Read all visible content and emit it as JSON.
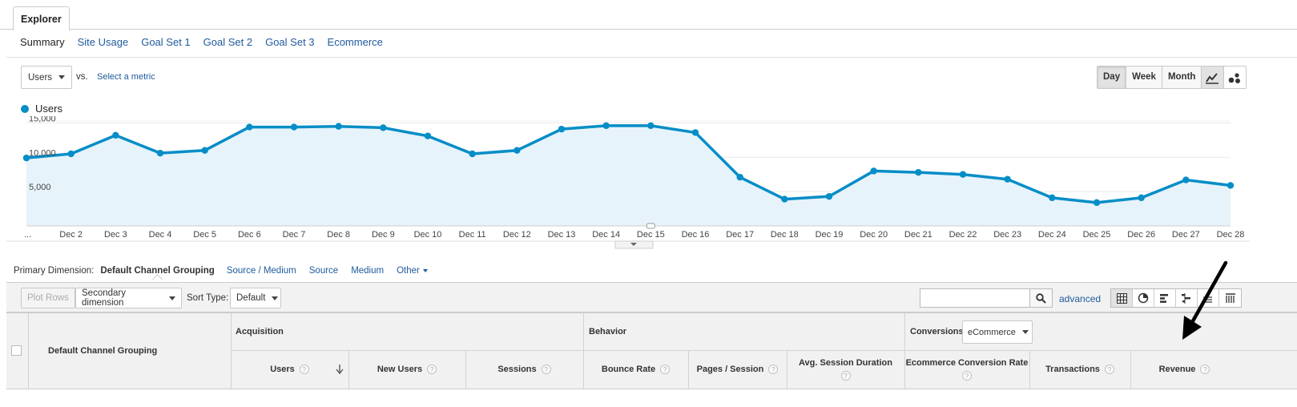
{
  "explorer_tab": "Explorer",
  "subnav": [
    "Summary",
    "Site Usage",
    "Goal Set 1",
    "Goal Set 2",
    "Goal Set 3",
    "Ecommerce"
  ],
  "metric_selector": {
    "value": "Users",
    "vs_label": "vs.",
    "select_metric": "Select a metric"
  },
  "granularity": {
    "options": [
      "Day",
      "Week",
      "Month"
    ],
    "selected": "Day"
  },
  "chart_icons": [
    "line-chart-icon",
    "motion-chart-icon"
  ],
  "chart_data": {
    "type": "area",
    "series": [
      {
        "name": "Users",
        "values": [
          9900,
          10500,
          13200,
          10600,
          11000,
          14400,
          14400,
          14500,
          14300,
          13100,
          10500,
          11000,
          14100,
          14600,
          14600,
          13600,
          7100,
          3900,
          4300,
          8000,
          7800,
          7500,
          6800,
          4100,
          3400,
          4100,
          6700,
          5900
        ]
      }
    ],
    "x": [
      "...",
      "Dec 2",
      "Dec 3",
      "Dec 4",
      "Dec 5",
      "Dec 6",
      "Dec 7",
      "Dec 8",
      "Dec 9",
      "Dec 10",
      "Dec 11",
      "Dec 12",
      "Dec 13",
      "Dec 14",
      "Dec 15",
      "Dec 16",
      "Dec 17",
      "Dec 18",
      "Dec 19",
      "Dec 20",
      "Dec 21",
      "Dec 22",
      "Dec 23",
      "Dec 24",
      "Dec 25",
      "Dec 26",
      "Dec 27",
      "Dec 28"
    ],
    "y_ticks": [
      "15,000",
      "10,000",
      "5,000"
    ],
    "y_tick_values": [
      15000,
      10000,
      5000
    ],
    "ylim": [
      0,
      15000
    ],
    "color": "#058dc7",
    "fill": "#e6f3fa",
    "grid": true,
    "legend": "top-left"
  },
  "primary_dimension": {
    "label": "Primary Dimension:",
    "current": "Default Channel Grouping",
    "others": [
      "Source / Medium",
      "Source",
      "Medium",
      "Other"
    ]
  },
  "toolbar": {
    "plot_rows": "Plot Rows",
    "secondary_dimension": "Secondary dimension",
    "sort_type_label": "Sort Type:",
    "sort_type_value": "Default",
    "search_value": "",
    "advanced": "advanced"
  },
  "table": {
    "group_col": "Default Channel Grouping",
    "groups": {
      "acquisition": "Acquisition",
      "behavior": "Behavior",
      "conversions": "Conversions",
      "conversions_select": "eCommerce"
    },
    "columns": [
      "Users",
      "New Users",
      "Sessions",
      "Bounce Rate",
      "Pages / Session",
      "Avg. Session Duration",
      "Ecommerce Conversion Rate",
      "Transactions",
      "Revenue"
    ],
    "help_glyph": "?"
  },
  "arrow_color": "#000000"
}
